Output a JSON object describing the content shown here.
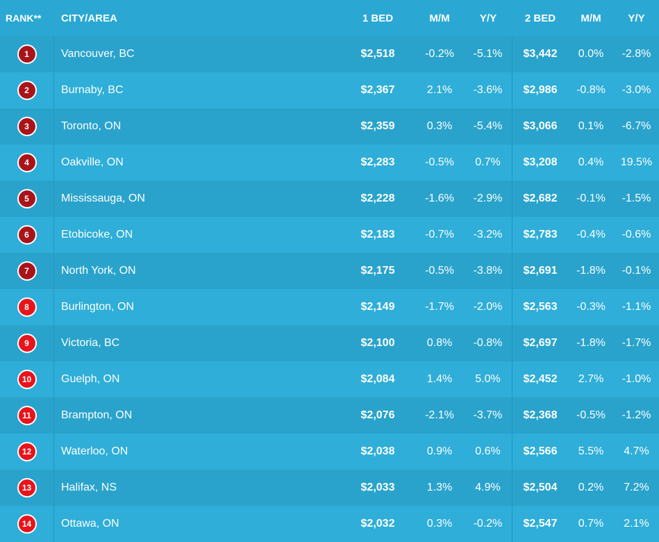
{
  "chart_data": {
    "type": "table",
    "columns": [
      "RANK**",
      "CITY/AREA",
      "1 BED",
      "M/M",
      "Y/Y",
      "2 BED",
      "M/M",
      "Y/Y"
    ],
    "rows": [
      {
        "rank": "1",
        "city": "Vancouver, BC",
        "bed1": "$2,518",
        "mm1": "-0.2%",
        "yy1": "-5.1%",
        "bed2": "$3,442",
        "mm2": "0.0%",
        "yy2": "-2.8%"
      },
      {
        "rank": "2",
        "city": "Burnaby, BC",
        "bed1": "$2,367",
        "mm1": "2.1%",
        "yy1": "-3.6%",
        "bed2": "$2,986",
        "mm2": "-0.8%",
        "yy2": "-3.0%"
      },
      {
        "rank": "3",
        "city": "Toronto, ON",
        "bed1": "$2,359",
        "mm1": "0.3%",
        "yy1": "-5.4%",
        "bed2": "$3,066",
        "mm2": "0.1%",
        "yy2": "-6.7%"
      },
      {
        "rank": "4",
        "city": "Oakville, ON",
        "bed1": "$2,283",
        "mm1": "-0.5%",
        "yy1": "0.7%",
        "bed2": "$3,208",
        "mm2": "0.4%",
        "yy2": "19.5%"
      },
      {
        "rank": "5",
        "city": "Mississauga, ON",
        "bed1": "$2,228",
        "mm1": "-1.6%",
        "yy1": "-2.9%",
        "bed2": "$2,682",
        "mm2": "-0.1%",
        "yy2": "-1.5%"
      },
      {
        "rank": "6",
        "city": "Etobicoke, ON",
        "bed1": "$2,183",
        "mm1": "-0.7%",
        "yy1": "-3.2%",
        "bed2": "$2,783",
        "mm2": "-0.4%",
        "yy2": "-0.6%"
      },
      {
        "rank": "7",
        "city": "North York, ON",
        "bed1": "$2,175",
        "mm1": "-0.5%",
        "yy1": "-3.8%",
        "bed2": "$2,691",
        "mm2": "-1.8%",
        "yy2": "-0.1%"
      },
      {
        "rank": "8",
        "city": "Burlington, ON",
        "bed1": "$2,149",
        "mm1": "-1.7%",
        "yy1": "-2.0%",
        "bed2": "$2,563",
        "mm2": "-0.3%",
        "yy2": "-1.1%"
      },
      {
        "rank": "9",
        "city": "Victoria, BC",
        "bed1": "$2,100",
        "mm1": "0.8%",
        "yy1": "-0.8%",
        "bed2": "$2,697",
        "mm2": "-1.8%",
        "yy2": "-1.7%"
      },
      {
        "rank": "10",
        "city": "Guelph, ON",
        "bed1": "$2,084",
        "mm1": "1.4%",
        "yy1": "5.0%",
        "bed2": "$2,452",
        "mm2": "2.7%",
        "yy2": "-1.0%"
      },
      {
        "rank": "11",
        "city": "Brampton, ON",
        "bed1": "$2,076",
        "mm1": "-2.1%",
        "yy1": "-3.7%",
        "bed2": "$2,368",
        "mm2": "-0.5%",
        "yy2": "-1.2%"
      },
      {
        "rank": "12",
        "city": "Waterloo, ON",
        "bed1": "$2,038",
        "mm1": "0.9%",
        "yy1": "0.6%",
        "bed2": "$2,566",
        "mm2": "5.5%",
        "yy2": "4.7%"
      },
      {
        "rank": "13",
        "city": "Halifax, NS",
        "bed1": "$2,033",
        "mm1": "1.3%",
        "yy1": "4.9%",
        "bed2": "$2,504",
        "mm2": "0.2%",
        "yy2": "7.2%"
      },
      {
        "rank": "14",
        "city": "Ottawa, ON",
        "bed1": "$2,032",
        "mm1": "0.3%",
        "yy1": "-0.2%",
        "bed2": "$2,547",
        "mm2": "0.7%",
        "yy2": "2.1%"
      }
    ]
  },
  "colors": {
    "header_bg": "#2aa8d3",
    "row_dark": "#29a3cc",
    "row_light": "#2eaed8",
    "badge_dark_red": "#a9141b",
    "badge_red": "#e8141b",
    "text": "#ffffff"
  }
}
